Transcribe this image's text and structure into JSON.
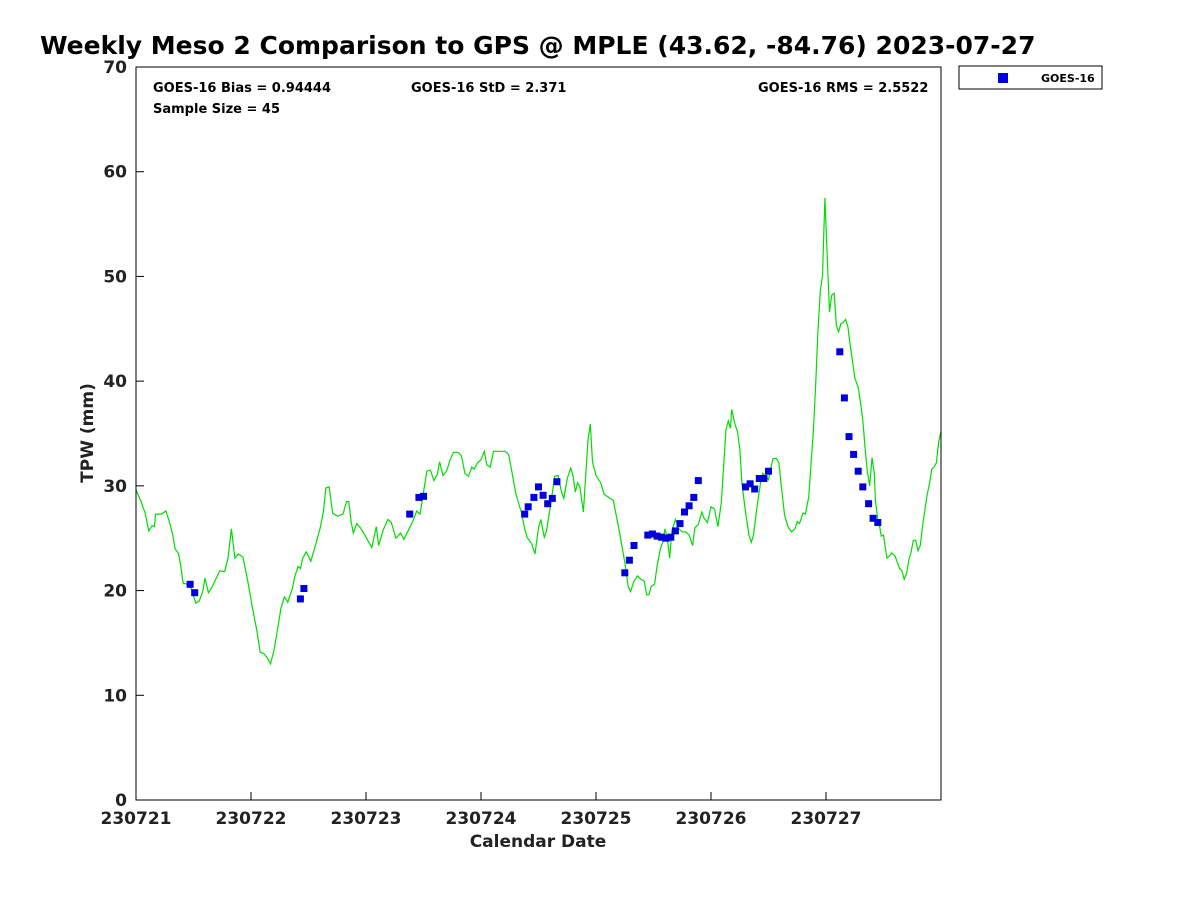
{
  "chart_data": {
    "type": "scatter",
    "title": "Weekly Meso 2 Comparison to GPS @ MPLE (43.62, -84.76) 2023-07-27",
    "xlabel": "Calendar Date",
    "ylabel": "TPW (mm)",
    "xlim": [
      0,
      7
    ],
    "ylim": [
      0,
      70
    ],
    "x_tick_values": [
      0,
      1,
      2,
      3,
      4,
      5,
      6
    ],
    "x_tick_labels": [
      "230721",
      "230722",
      "230723",
      "230724",
      "230725",
      "230726",
      "230727"
    ],
    "y_tick_values": [
      0,
      10,
      20,
      30,
      40,
      50,
      60,
      70
    ],
    "y_tick_labels": [
      "0",
      "10",
      "20",
      "30",
      "40",
      "50",
      "60",
      "70"
    ],
    "legend": {
      "location": "top-right",
      "entries": [
        "GOES-16"
      ]
    },
    "stats": {
      "bias": "GOES-16 Bias = 0.94444",
      "std": "GOES-16 StD = 2.371",
      "rms": "GOES-16 RMS = 2.5522",
      "n": "Sample Size = 45"
    },
    "series": [
      {
        "name": "GPS",
        "kind": "line",
        "color": "#00dd00",
        "points": [
          [
            0.0,
            29.6
          ],
          [
            0.04,
            28.6
          ],
          [
            0.08,
            27.4
          ],
          [
            0.11,
            25.7
          ],
          [
            0.14,
            26.2
          ],
          [
            0.16,
            26.1
          ],
          [
            0.17,
            27.3
          ],
          [
            0.22,
            27.3
          ],
          [
            0.26,
            27.6
          ],
          [
            0.29,
            26.6
          ],
          [
            0.32,
            25.3
          ],
          [
            0.34,
            24.0
          ],
          [
            0.37,
            23.5
          ],
          [
            0.39,
            22.3
          ],
          [
            0.41,
            20.7
          ],
          [
            0.45,
            20.6
          ],
          [
            0.48,
            20.2
          ],
          [
            0.52,
            18.8
          ],
          [
            0.55,
            19.0
          ],
          [
            0.58,
            19.9
          ],
          [
            0.6,
            21.2
          ],
          [
            0.63,
            19.8
          ],
          [
            0.66,
            20.3
          ],
          [
            0.69,
            21.0
          ],
          [
            0.73,
            21.9
          ],
          [
            0.77,
            21.8
          ],
          [
            0.8,
            23.1
          ],
          [
            0.83,
            25.9
          ],
          [
            0.86,
            23.1
          ],
          [
            0.89,
            23.5
          ],
          [
            0.93,
            23.2
          ],
          [
            0.97,
            21.0
          ],
          [
            1.01,
            18.5
          ],
          [
            1.05,
            16.2
          ],
          [
            1.08,
            14.1
          ],
          [
            1.11,
            14.0
          ],
          [
            1.14,
            13.6
          ],
          [
            1.17,
            13.0
          ],
          [
            1.2,
            14.3
          ],
          [
            1.23,
            16.2
          ],
          [
            1.26,
            18.3
          ],
          [
            1.29,
            19.4
          ],
          [
            1.32,
            18.9
          ],
          [
            1.36,
            20.2
          ],
          [
            1.38,
            21.3
          ],
          [
            1.41,
            22.3
          ],
          [
            1.43,
            22.1
          ],
          [
            1.45,
            23.1
          ],
          [
            1.48,
            23.7
          ],
          [
            1.52,
            22.8
          ],
          [
            1.56,
            24.3
          ],
          [
            1.6,
            25.9
          ],
          [
            1.63,
            27.5
          ],
          [
            1.65,
            29.8
          ],
          [
            1.68,
            29.9
          ],
          [
            1.71,
            27.4
          ],
          [
            1.75,
            27.1
          ],
          [
            1.8,
            27.3
          ],
          [
            1.83,
            28.5
          ],
          [
            1.85,
            28.5
          ],
          [
            1.87,
            26.6
          ],
          [
            1.89,
            25.5
          ],
          [
            1.92,
            26.4
          ],
          [
            1.95,
            26.0
          ],
          [
            1.98,
            25.5
          ],
          [
            2.02,
            24.7
          ],
          [
            2.05,
            24.1
          ],
          [
            2.09,
            26.1
          ],
          [
            2.11,
            24.3
          ],
          [
            2.15,
            25.8
          ],
          [
            2.19,
            26.8
          ],
          [
            2.22,
            26.5
          ],
          [
            2.26,
            25.0
          ],
          [
            2.3,
            25.5
          ],
          [
            2.33,
            24.9
          ],
          [
            2.37,
            25.8
          ],
          [
            2.41,
            26.7
          ],
          [
            2.44,
            27.6
          ],
          [
            2.47,
            27.3
          ],
          [
            2.5,
            29.4
          ],
          [
            2.53,
            31.4
          ],
          [
            2.56,
            31.5
          ],
          [
            2.59,
            30.5
          ],
          [
            2.62,
            31.1
          ],
          [
            2.64,
            32.3
          ],
          [
            2.67,
            31.0
          ],
          [
            2.7,
            31.4
          ],
          [
            2.73,
            32.4
          ],
          [
            2.76,
            33.2
          ],
          [
            2.8,
            33.2
          ],
          [
            2.83,
            32.9
          ],
          [
            2.86,
            31.2
          ],
          [
            2.89,
            30.9
          ],
          [
            2.92,
            31.8
          ],
          [
            2.94,
            31.6
          ],
          [
            2.97,
            32.2
          ],
          [
            3.0,
            32.5
          ],
          [
            3.03,
            33.3
          ],
          [
            3.05,
            32.0
          ],
          [
            3.08,
            31.8
          ],
          [
            3.11,
            33.3
          ],
          [
            3.15,
            33.3
          ],
          [
            3.18,
            33.3
          ],
          [
            3.21,
            33.3
          ],
          [
            3.24,
            33.0
          ],
          [
            3.27,
            31.3
          ],
          [
            3.3,
            29.4
          ],
          [
            3.32,
            28.6
          ],
          [
            3.35,
            27.5
          ],
          [
            3.38,
            25.9
          ],
          [
            3.4,
            25.1
          ],
          [
            3.44,
            24.5
          ],
          [
            3.47,
            23.5
          ],
          [
            3.5,
            26.0
          ],
          [
            3.52,
            26.8
          ],
          [
            3.55,
            25.1
          ],
          [
            3.57,
            25.7
          ],
          [
            3.6,
            27.8
          ],
          [
            3.62,
            29.3
          ],
          [
            3.64,
            30.9
          ],
          [
            3.67,
            31.0
          ],
          [
            3.7,
            29.4
          ],
          [
            3.72,
            28.8
          ],
          [
            3.75,
            30.7
          ],
          [
            3.78,
            31.7
          ],
          [
            3.8,
            31.0
          ],
          [
            3.82,
            29.4
          ],
          [
            3.84,
            30.3
          ],
          [
            3.86,
            29.9
          ],
          [
            3.89,
            27.5
          ],
          [
            3.91,
            31.0
          ],
          [
            3.93,
            34.4
          ],
          [
            3.95,
            35.9
          ],
          [
            3.97,
            32.3
          ],
          [
            4.0,
            31.0
          ],
          [
            4.04,
            30.3
          ],
          [
            4.07,
            29.2
          ],
          [
            4.11,
            28.9
          ],
          [
            4.15,
            28.6
          ],
          [
            4.19,
            26.4
          ],
          [
            4.22,
            24.6
          ],
          [
            4.25,
            22.7
          ],
          [
            4.28,
            20.4
          ],
          [
            4.3,
            19.9
          ],
          [
            4.33,
            20.9
          ],
          [
            4.36,
            21.4
          ],
          [
            4.39,
            21.1
          ],
          [
            4.42,
            20.9
          ],
          [
            4.44,
            19.6
          ],
          [
            4.46,
            19.6
          ],
          [
            4.48,
            20.4
          ],
          [
            4.51,
            20.6
          ],
          [
            4.53,
            22.3
          ],
          [
            4.56,
            24.0
          ],
          [
            4.58,
            24.6
          ],
          [
            4.6,
            25.9
          ],
          [
            4.62,
            25.0
          ],
          [
            4.64,
            23.1
          ],
          [
            4.66,
            25.7
          ],
          [
            4.69,
            26.8
          ],
          [
            4.72,
            25.9
          ],
          [
            4.75,
            25.6
          ],
          [
            4.78,
            25.6
          ],
          [
            4.81,
            25.3
          ],
          [
            4.84,
            24.3
          ],
          [
            4.86,
            26.0
          ],
          [
            4.89,
            26.3
          ],
          [
            4.92,
            27.5
          ],
          [
            4.94,
            26.9
          ],
          [
            4.97,
            26.5
          ],
          [
            5.0,
            28.0
          ],
          [
            5.03,
            27.8
          ],
          [
            5.06,
            26.1
          ],
          [
            5.09,
            28.4
          ],
          [
            5.11,
            32.0
          ],
          [
            5.13,
            35.4
          ],
          [
            5.15,
            36.2
          ],
          [
            5.17,
            35.5
          ],
          [
            5.18,
            37.3
          ],
          [
            5.21,
            35.8
          ],
          [
            5.23,
            35.2
          ],
          [
            5.25,
            33.5
          ],
          [
            5.27,
            30.2
          ],
          [
            5.3,
            27.5
          ],
          [
            5.33,
            25.3
          ],
          [
            5.35,
            24.6
          ],
          [
            5.37,
            25.3
          ],
          [
            5.4,
            28.0
          ],
          [
            5.43,
            30.2
          ],
          [
            5.45,
            31.2
          ],
          [
            5.48,
            30.9
          ],
          [
            5.5,
            30.6
          ],
          [
            5.52,
            31.7
          ],
          [
            5.54,
            32.6
          ],
          [
            5.57,
            32.6
          ],
          [
            5.59,
            32.2
          ],
          [
            5.62,
            29.1
          ],
          [
            5.64,
            27.2
          ],
          [
            5.67,
            26.1
          ],
          [
            5.7,
            25.6
          ],
          [
            5.73,
            25.9
          ],
          [
            5.75,
            26.6
          ],
          [
            5.77,
            26.4
          ],
          [
            5.8,
            27.4
          ],
          [
            5.82,
            27.3
          ],
          [
            5.85,
            28.9
          ],
          [
            5.87,
            32.2
          ],
          [
            5.89,
            35.3
          ],
          [
            5.91,
            39.5
          ],
          [
            5.93,
            44.7
          ],
          [
            5.95,
            48.6
          ],
          [
            5.97,
            50.1
          ],
          [
            5.99,
            57.5
          ],
          [
            6.01,
            52.2
          ],
          [
            6.03,
            46.6
          ],
          [
            6.05,
            48.2
          ],
          [
            6.07,
            48.4
          ],
          [
            6.09,
            45.3
          ],
          [
            6.11,
            44.7
          ],
          [
            6.13,
            45.5
          ],
          [
            6.15,
            45.6
          ],
          [
            6.17,
            45.9
          ],
          [
            6.19,
            45.2
          ],
          [
            6.21,
            43.5
          ],
          [
            6.23,
            41.9
          ],
          [
            6.25,
            40.3
          ],
          [
            6.28,
            39.4
          ],
          [
            6.3,
            38.0
          ],
          [
            6.32,
            36.3
          ],
          [
            6.34,
            33.6
          ],
          [
            6.36,
            31.3
          ],
          [
            6.38,
            30.0
          ],
          [
            6.4,
            32.7
          ],
          [
            6.42,
            31.2
          ],
          [
            6.43,
            28.6
          ],
          [
            6.45,
            26.8
          ],
          [
            6.46,
            26.6
          ],
          [
            6.48,
            25.2
          ],
          [
            6.5,
            25.3
          ],
          [
            6.52,
            23.8
          ],
          [
            6.53,
            23.1
          ],
          [
            6.55,
            23.3
          ],
          [
            6.57,
            23.6
          ],
          [
            6.6,
            23.3
          ],
          [
            6.62,
            22.7
          ],
          [
            6.64,
            22.1
          ],
          [
            6.66,
            21.9
          ],
          [
            6.68,
            21.1
          ],
          [
            6.7,
            21.6
          ],
          [
            6.72,
            22.9
          ],
          [
            6.74,
            23.7
          ],
          [
            6.76,
            24.8
          ],
          [
            6.78,
            24.8
          ],
          [
            6.8,
            23.8
          ],
          [
            6.82,
            24.3
          ],
          [
            6.84,
            26.2
          ],
          [
            6.86,
            27.7
          ],
          [
            6.88,
            29.2
          ],
          [
            6.9,
            30.2
          ],
          [
            6.92,
            31.6
          ],
          [
            6.94,
            31.8
          ],
          [
            6.96,
            32.2
          ],
          [
            6.98,
            34.2
          ],
          [
            7.0,
            35.2
          ]
        ]
      },
      {
        "name": "GOES-16",
        "kind": "scatter",
        "color": "#0000dd",
        "points": [
          [
            0.47,
            20.6
          ],
          [
            0.51,
            19.8
          ],
          [
            1.43,
            19.2
          ],
          [
            1.46,
            20.2
          ],
          [
            2.38,
            27.3
          ],
          [
            2.46,
            28.9
          ],
          [
            2.5,
            29.0
          ],
          [
            3.38,
            27.3
          ],
          [
            3.41,
            28.0
          ],
          [
            3.46,
            28.9
          ],
          [
            3.5,
            29.9
          ],
          [
            3.54,
            29.1
          ],
          [
            3.58,
            28.3
          ],
          [
            3.62,
            28.8
          ],
          [
            3.66,
            30.4
          ],
          [
            4.25,
            21.7
          ],
          [
            4.29,
            22.9
          ],
          [
            4.33,
            24.3
          ],
          [
            4.45,
            25.3
          ],
          [
            4.49,
            25.4
          ],
          [
            4.53,
            25.2
          ],
          [
            4.57,
            25.1
          ],
          [
            4.61,
            25.0
          ],
          [
            4.65,
            25.1
          ],
          [
            4.69,
            25.7
          ],
          [
            4.73,
            26.4
          ],
          [
            4.77,
            27.5
          ],
          [
            4.81,
            28.1
          ],
          [
            4.85,
            28.9
          ],
          [
            4.89,
            30.5
          ],
          [
            5.3,
            29.9
          ],
          [
            5.34,
            30.2
          ],
          [
            5.38,
            29.7
          ],
          [
            5.42,
            30.7
          ],
          [
            5.46,
            30.7
          ],
          [
            5.5,
            31.4
          ],
          [
            6.12,
            42.8
          ],
          [
            6.16,
            38.4
          ],
          [
            6.2,
            34.7
          ],
          [
            6.24,
            33.0
          ],
          [
            6.28,
            31.4
          ],
          [
            6.32,
            29.9
          ],
          [
            6.37,
            28.3
          ],
          [
            6.41,
            26.9
          ],
          [
            6.45,
            26.5
          ]
        ]
      }
    ]
  }
}
